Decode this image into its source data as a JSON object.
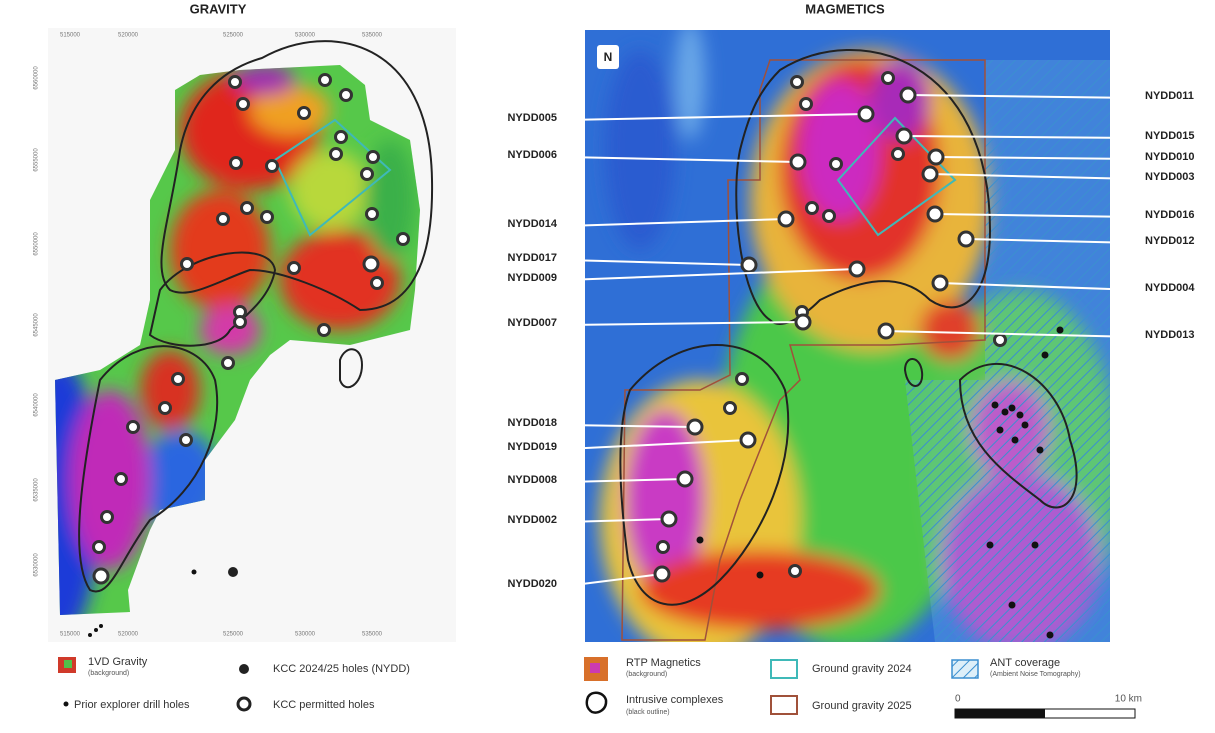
{
  "gravity": {
    "title": "GRAVITY",
    "x_labels": [
      "515000",
      "520000",
      "525000",
      "530000",
      "535000"
    ],
    "y_labels": [
      "6560000",
      "6555000",
      "6550000",
      "6545000",
      "6540000",
      "6535000",
      "6530000"
    ]
  },
  "magnetics": {
    "title": "MAGMETICS",
    "north": "N",
    "left_holes": [
      "NYDD005",
      "NYDD006",
      "NYDD014",
      "NYDD017",
      "NYDD009",
      "NYDD007",
      "NYDD018",
      "NYDD019",
      "NYDD008",
      "NYDD002",
      "NYDD020"
    ],
    "right_holes": [
      "NYDD011",
      "NYDD015",
      "NYDD010",
      "NYDD003",
      "NYDD016",
      "NYDD012",
      "NYDD004",
      "NYDD013"
    ]
  },
  "legend": {
    "gravity_bg": "1VD Gravity",
    "gravity_bg_note": "(background)",
    "kcc_holes": "KCC 2024/25 holes (NYDD)",
    "prior_holes": "Prior explorer drill holes",
    "permitted_holes": "KCC permitted holes",
    "mag_bg": "RTP Magnetics",
    "mag_bg_note": "(background)",
    "gg2024": "Ground gravity 2024",
    "ant": "ANT coverage",
    "ant_note": "(Ambient Noise Tomography)",
    "intrusive": "Intrusive complexes",
    "intrusive_note": "(black outline)",
    "gg2025": "Ground gravity 2025",
    "scale_start": "0",
    "scale_end": "10 km"
  }
}
